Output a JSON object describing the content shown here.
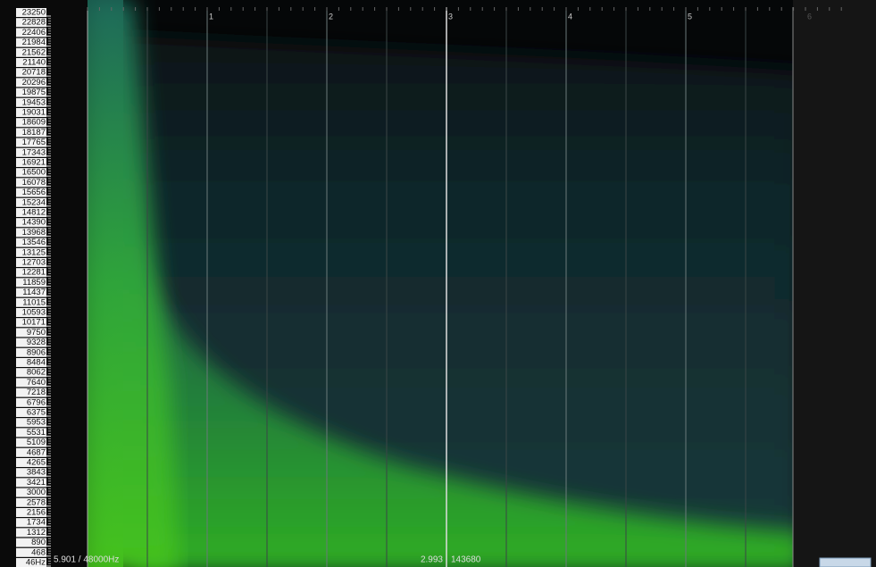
{
  "frequency_labels": [
    "23250",
    "22828",
    "22406",
    "21984",
    "21562",
    "21140",
    "20718",
    "20296",
    "19875",
    "19453",
    "19031",
    "18609",
    "18187",
    "17765",
    "17343",
    "16921",
    "16500",
    "16078",
    "15656",
    "15234",
    "14812",
    "14390",
    "13968",
    "13546",
    "13125",
    "12703",
    "12281",
    "11859",
    "11437",
    "11015",
    "10593",
    "10171",
    "9750",
    "9328",
    "8906",
    "8484",
    "8062",
    "7640",
    "7218",
    "6796",
    "6375",
    "5953",
    "5531",
    "5109",
    "4687",
    "4265",
    "3843",
    "3421",
    "3000",
    "2578",
    "2156",
    "1734",
    "1312",
    "890",
    "468",
    "46Hz"
  ],
  "time_labels": [
    "1",
    "2",
    "3",
    "4",
    "5",
    "6"
  ],
  "status": {
    "position": "5.901 / 48000Hz",
    "cursor_time": "2.993",
    "cursor_sample": "143680"
  }
}
